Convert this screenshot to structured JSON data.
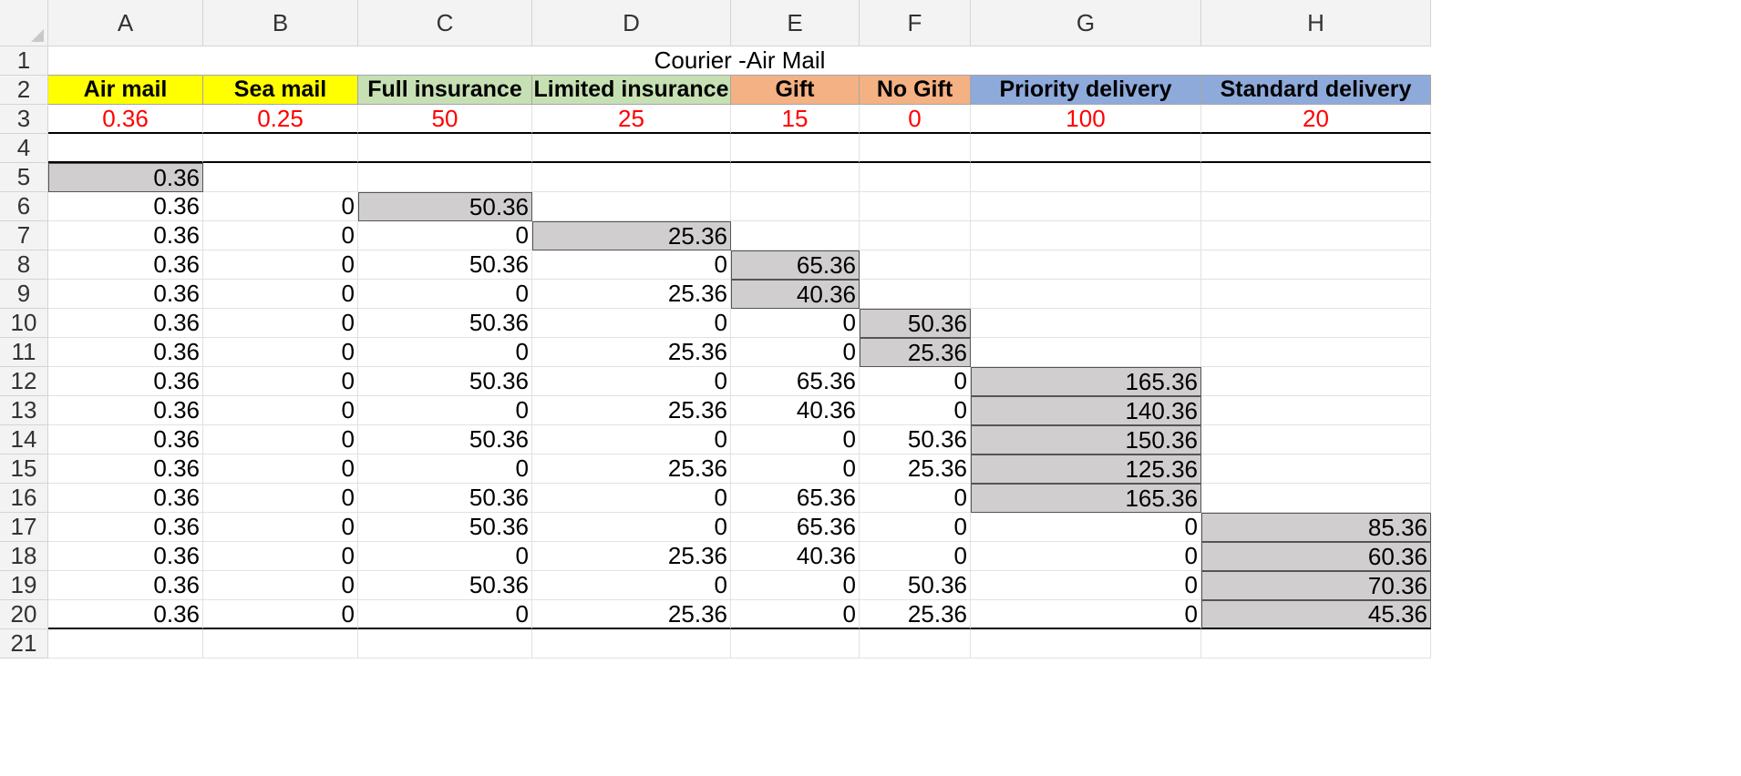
{
  "columns": [
    "A",
    "B",
    "C",
    "D",
    "E",
    "F",
    "G",
    "H"
  ],
  "rows": [
    "1",
    "2",
    "3",
    "4",
    "5",
    "6",
    "7",
    "8",
    "9",
    "10",
    "11",
    "12",
    "13",
    "14",
    "15",
    "16",
    "17",
    "18",
    "19",
    "20",
    "21"
  ],
  "title": "Courier -Air Mail",
  "headers": [
    "Air mail",
    "Sea mail",
    "Full insurance",
    "Limited insurance",
    "Gift",
    "No Gift",
    "Priority delivery",
    "Standard delivery"
  ],
  "header_colors": [
    "#ffff00",
    "#ffff00",
    "#c6e0b4",
    "#c6e0b4",
    "#f4b183",
    "#f4b183",
    "#8eaadb",
    "#8eaadb"
  ],
  "prices": [
    "0.36",
    "0.25",
    "50",
    "25",
    "15",
    "0",
    "100",
    "20"
  ],
  "data_rows": [
    [
      "0.36",
      "",
      "",
      "",
      "",
      "",
      "",
      ""
    ],
    [
      "0.36",
      "0",
      "50.36",
      "",
      "",
      "",
      "",
      ""
    ],
    [
      "0.36",
      "0",
      "0",
      "25.36",
      "",
      "",
      "",
      ""
    ],
    [
      "0.36",
      "0",
      "50.36",
      "0",
      "65.36",
      "",
      "",
      ""
    ],
    [
      "0.36",
      "0",
      "0",
      "25.36",
      "40.36",
      "",
      "",
      ""
    ],
    [
      "0.36",
      "0",
      "50.36",
      "0",
      "0",
      "50.36",
      "",
      ""
    ],
    [
      "0.36",
      "0",
      "0",
      "25.36",
      "0",
      "25.36",
      "",
      ""
    ],
    [
      "0.36",
      "0",
      "50.36",
      "0",
      "65.36",
      "0",
      "165.36",
      ""
    ],
    [
      "0.36",
      "0",
      "0",
      "25.36",
      "40.36",
      "0",
      "140.36",
      ""
    ],
    [
      "0.36",
      "0",
      "50.36",
      "0",
      "0",
      "50.36",
      "150.36",
      ""
    ],
    [
      "0.36",
      "0",
      "0",
      "25.36",
      "0",
      "25.36",
      "125.36",
      ""
    ],
    [
      "0.36",
      "0",
      "50.36",
      "0",
      "65.36",
      "0",
      "165.36",
      ""
    ],
    [
      "0.36",
      "0",
      "50.36",
      "0",
      "65.36",
      "0",
      "0",
      "85.36"
    ],
    [
      "0.36",
      "0",
      "0",
      "25.36",
      "40.36",
      "0",
      "0",
      "60.36"
    ],
    [
      "0.36",
      "0",
      "50.36",
      "0",
      "0",
      "50.36",
      "0",
      "70.36"
    ],
    [
      "0.36",
      "0",
      "0",
      "25.36",
      "0",
      "25.36",
      "0",
      "45.36"
    ]
  ],
  "highlight_col": [
    0,
    2,
    3,
    4,
    4,
    5,
    5,
    6,
    6,
    6,
    6,
    6,
    7,
    7,
    7,
    7
  ]
}
